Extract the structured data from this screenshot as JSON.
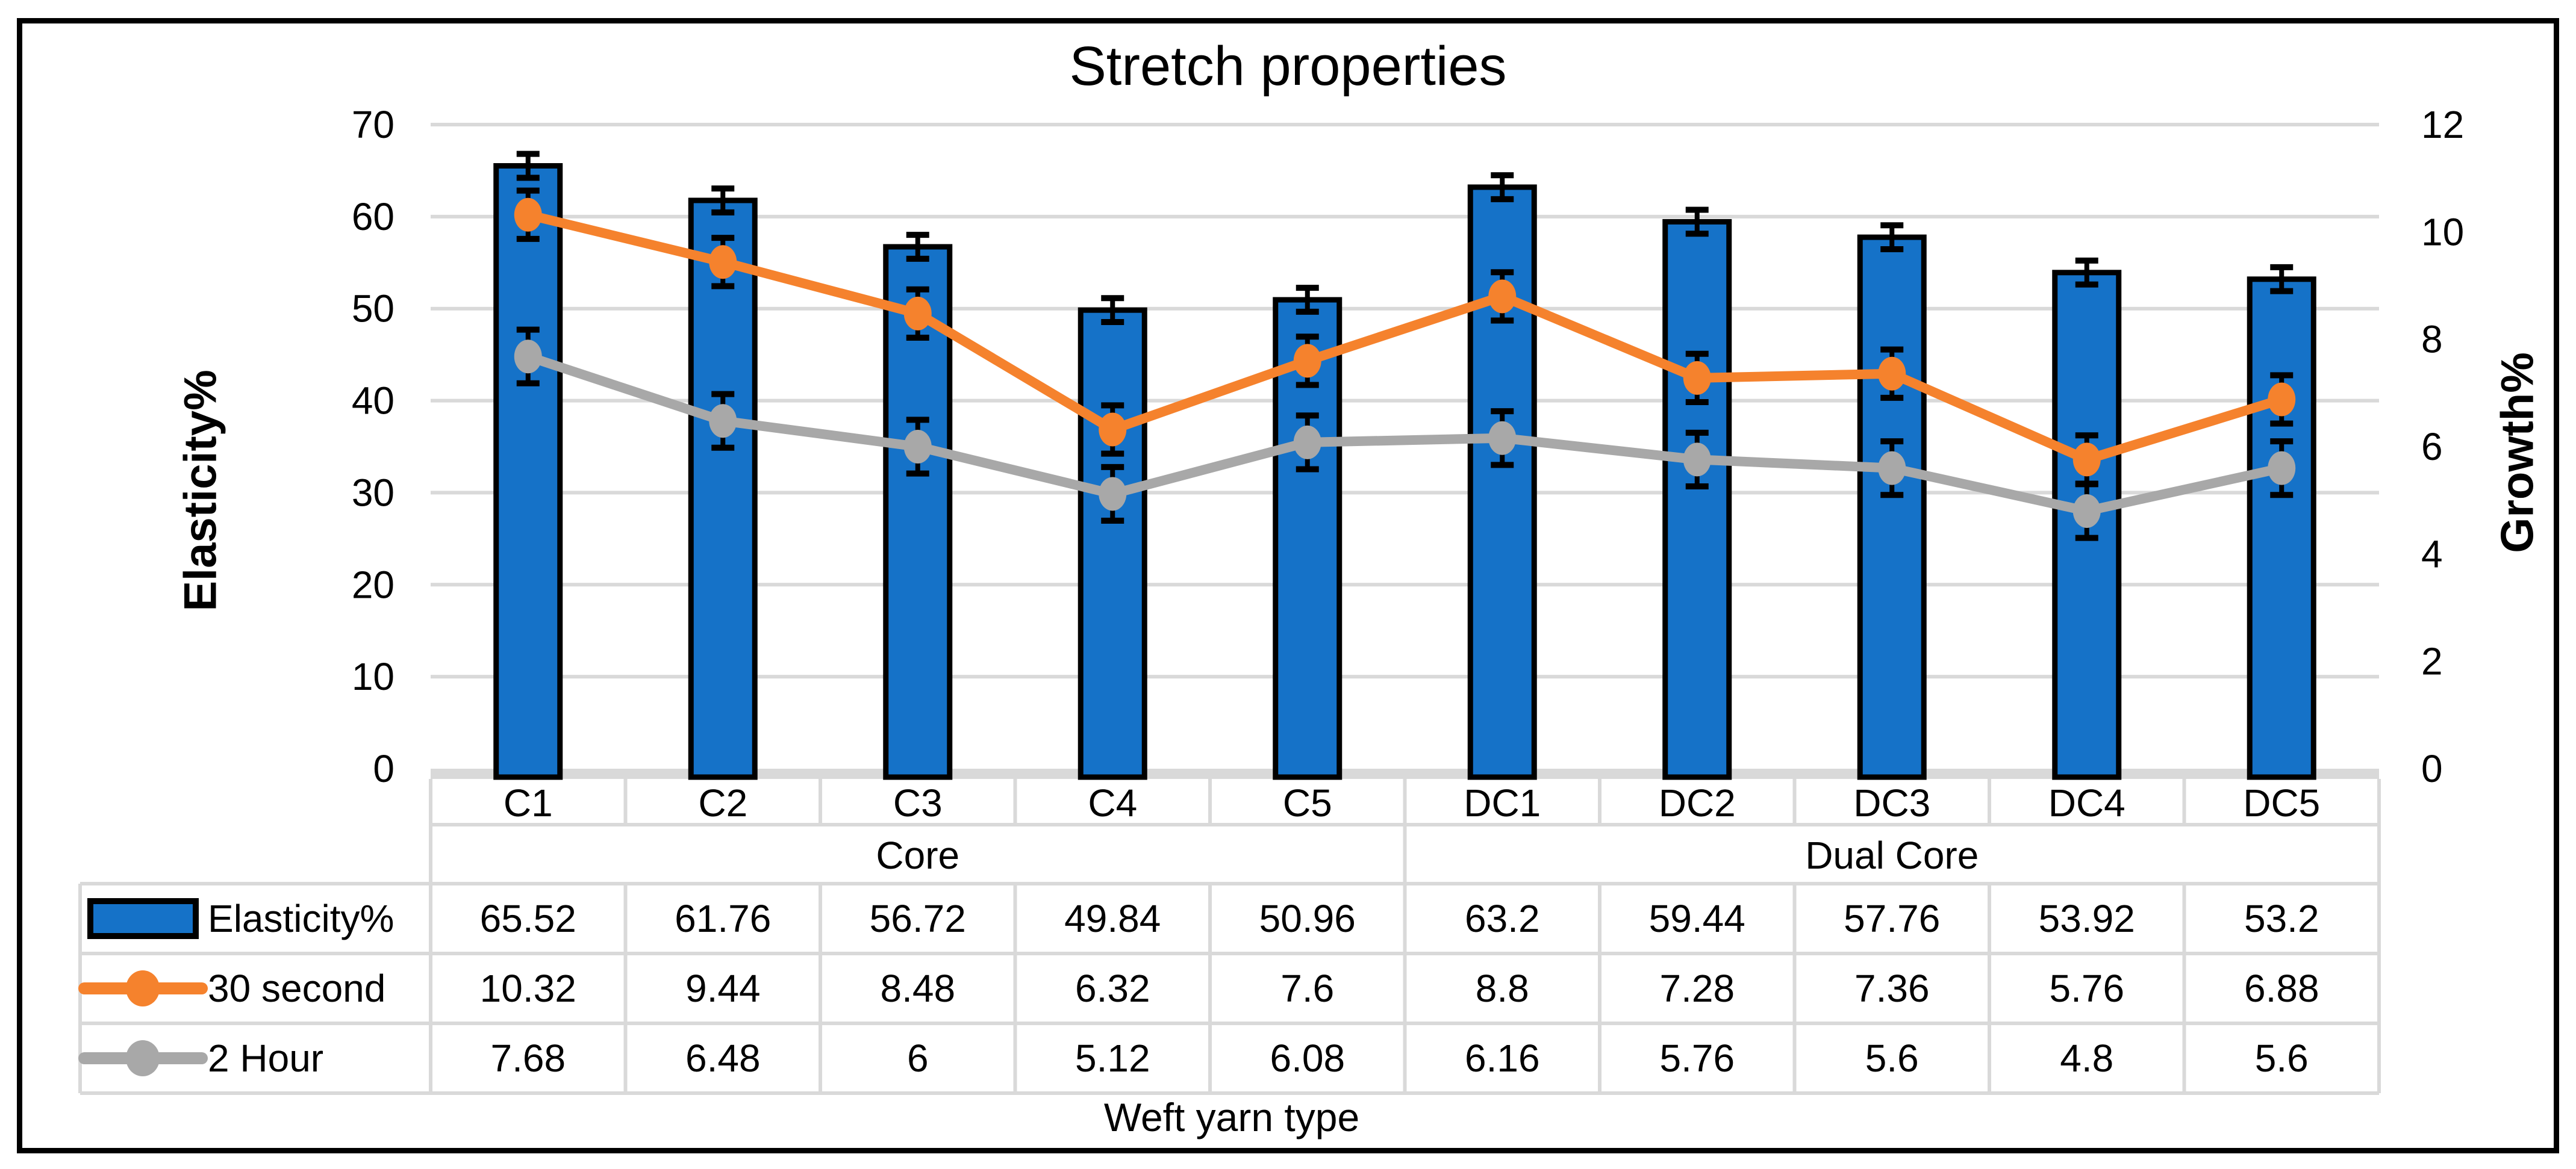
{
  "frame": {
    "border_color": "#000000",
    "background": "#FFFFFF"
  },
  "chart_data": {
    "type": "bar+line",
    "title": "Stretch properties",
    "categories": [
      "C1",
      "C2",
      "C3",
      "C4",
      "C5",
      "DC1",
      "DC2",
      "DC3",
      "DC4",
      "DC5"
    ],
    "category_groups": [
      {
        "label": "Core",
        "start": 0,
        "count": 5
      },
      {
        "label": "Dual Core",
        "start": 5,
        "count": 5
      }
    ],
    "x_axis": {
      "title": "Weft yarn type"
    },
    "left_axis": {
      "title": "Elasticity%",
      "min": 0,
      "max": 70,
      "step": 10,
      "tick_labels": [
        "70",
        "60",
        "50",
        "40",
        "30",
        "20",
        "10",
        "0"
      ]
    },
    "right_axis": {
      "title": "Growth%",
      "min": 0,
      "max": 12,
      "step": 2,
      "tick_labels": [
        "12",
        "10",
        "8",
        "6",
        "4",
        "2",
        "0"
      ]
    },
    "grid": true,
    "legend_position": "table-left",
    "series": [
      {
        "name": "Elasticity%",
        "type": "bar",
        "axis": "left",
        "color": "#1572C8",
        "outline": "#000000",
        "error_bar": 1.3,
        "values": [
          65.52,
          61.76,
          56.72,
          49.84,
          50.96,
          63.2,
          59.44,
          57.76,
          53.92,
          53.2
        ]
      },
      {
        "name": "30 second",
        "type": "line",
        "axis": "right",
        "color": "#F5822D",
        "error_bar": 0.45,
        "values": [
          10.32,
          9.44,
          8.48,
          6.32,
          7.6,
          8.8,
          7.28,
          7.36,
          5.76,
          6.88
        ]
      },
      {
        "name": "2 Hour",
        "type": "line",
        "axis": "right",
        "color": "#A8A8A8",
        "error_bar": 0.5,
        "values": [
          7.68,
          6.48,
          6,
          5.12,
          6.08,
          6.16,
          5.76,
          5.6,
          4.8,
          5.6
        ]
      }
    ],
    "colors": {
      "gridline": "#D9D9D9",
      "axis_band": "#D9D9D9",
      "table_border": "#D9D9D9",
      "error_bar": "#000000",
      "text": "#000000"
    }
  }
}
